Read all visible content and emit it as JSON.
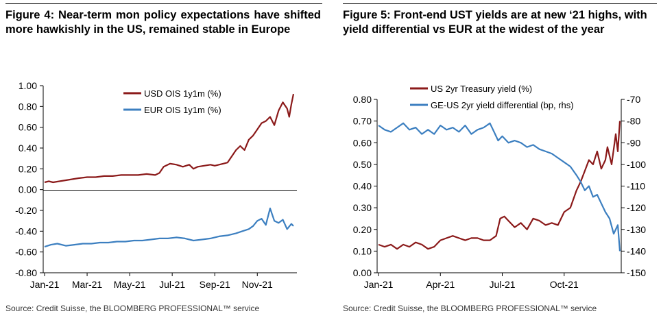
{
  "colors": {
    "series_red": "#8b1a1a",
    "series_blue": "#3c7fc0",
    "axis": "#000000"
  },
  "chart_data": [
    {
      "type": "line",
      "figure_label": "Figure 4:",
      "title": "Figure 4: Near-term mon policy expectations have shifted more hawkishly in the US, remained stable in Europe",
      "source": "Source: Credit Suisse, the BLOOMBERG PROFESSIONAL™ service",
      "xlabel": "",
      "ylabel": "",
      "x_range": [
        0,
        11.7
      ],
      "x_ticks": [
        {
          "label": "Jan-21",
          "x": 0
        },
        {
          "label": "Mar-21",
          "x": 2
        },
        {
          "label": "May-21",
          "x": 4
        },
        {
          "label": "Jul-21",
          "x": 6
        },
        {
          "label": "Sep-21",
          "x": 8
        },
        {
          "label": "Nov-21",
          "x": 10
        }
      ],
      "ylim": [
        -0.8,
        1.0
      ],
      "y_ticks": [
        "1.00",
        "0.80",
        "0.60",
        "0.40",
        "0.20",
        "0.00",
        "-0.20",
        "-0.40",
        "-0.60",
        "-0.80"
      ],
      "y_tick_values": [
        1.0,
        0.8,
        0.6,
        0.4,
        0.2,
        0.0,
        -0.2,
        -0.4,
        -0.6,
        -0.8
      ],
      "legend": "top-center",
      "series": [
        {
          "name": "USD OIS 1y1m (%)",
          "color": "#8b1a1a",
          "x": [
            0,
            0.2,
            0.4,
            0.7,
            1.0,
            1.3,
            1.6,
            2.0,
            2.4,
            2.8,
            3.2,
            3.6,
            4.0,
            4.4,
            4.8,
            5.2,
            5.4,
            5.6,
            5.9,
            6.2,
            6.5,
            6.8,
            7.0,
            7.2,
            7.5,
            7.8,
            8.0,
            8.2,
            8.4,
            8.6,
            8.8,
            9.0,
            9.2,
            9.4,
            9.6,
            9.8,
            10.0,
            10.2,
            10.4,
            10.6,
            10.8,
            11.0,
            11.2,
            11.4,
            11.5,
            11.6,
            11.7
          ],
          "values": [
            0.07,
            0.08,
            0.07,
            0.08,
            0.09,
            0.1,
            0.11,
            0.12,
            0.12,
            0.13,
            0.13,
            0.14,
            0.14,
            0.14,
            0.15,
            0.14,
            0.16,
            0.22,
            0.25,
            0.24,
            0.22,
            0.24,
            0.2,
            0.22,
            0.23,
            0.24,
            0.23,
            0.24,
            0.25,
            0.26,
            0.32,
            0.38,
            0.42,
            0.38,
            0.48,
            0.52,
            0.58,
            0.64,
            0.66,
            0.7,
            0.62,
            0.76,
            0.84,
            0.78,
            0.7,
            0.82,
            0.92
          ]
        },
        {
          "name": "EUR OIS 1y1m (%)",
          "color": "#3c7fc0",
          "x": [
            0,
            0.3,
            0.6,
            1.0,
            1.4,
            1.8,
            2.2,
            2.6,
            3.0,
            3.4,
            3.8,
            4.2,
            4.6,
            5.0,
            5.4,
            5.8,
            6.2,
            6.6,
            7.0,
            7.4,
            7.8,
            8.2,
            8.6,
            9.0,
            9.3,
            9.6,
            9.8,
            10.0,
            10.2,
            10.4,
            10.6,
            10.8,
            11.0,
            11.2,
            11.4,
            11.6,
            11.7
          ],
          "values": [
            -0.55,
            -0.53,
            -0.52,
            -0.54,
            -0.53,
            -0.52,
            -0.52,
            -0.51,
            -0.51,
            -0.5,
            -0.5,
            -0.49,
            -0.49,
            -0.48,
            -0.47,
            -0.47,
            -0.46,
            -0.47,
            -0.49,
            -0.48,
            -0.47,
            -0.45,
            -0.44,
            -0.42,
            -0.4,
            -0.38,
            -0.35,
            -0.3,
            -0.28,
            -0.34,
            -0.18,
            -0.3,
            -0.32,
            -0.29,
            -0.38,
            -0.33,
            -0.35
          ]
        }
      ]
    },
    {
      "type": "line",
      "figure_label": "Figure 5:",
      "title": "Figure 5: Front-end UST yields are at new ‘21 highs, with yield differential vs EUR at the widest of the year",
      "source": "Source: Credit Suisse, the BLOOMBERG PROFESSIONAL™ service",
      "xlabel": "",
      "ylabel": "",
      "x_range": [
        0,
        11.7
      ],
      "x_ticks": [
        {
          "label": "Jan-21",
          "x": 0
        },
        {
          "label": "Apr-21",
          "x": 3
        },
        {
          "label": "Jul-21",
          "x": 6
        },
        {
          "label": "Oct-21",
          "x": 9
        }
      ],
      "ylim": [
        0.0,
        0.8
      ],
      "y_ticks": [
        "0.80",
        "0.70",
        "0.60",
        "0.50",
        "0.40",
        "0.30",
        "0.20",
        "0.10",
        "0.00"
      ],
      "y_tick_values": [
        0.8,
        0.7,
        0.6,
        0.5,
        0.4,
        0.3,
        0.2,
        0.1,
        0.0
      ],
      "y2lim": [
        -150,
        -70
      ],
      "y2_ticks": [
        "-70",
        "-80",
        "-90",
        "-100",
        "-110",
        "-120",
        "-130",
        "-140",
        "-150"
      ],
      "y2_tick_values": [
        -70,
        -80,
        -90,
        -100,
        -110,
        -120,
        -130,
        -140,
        -150
      ],
      "legend": "top-center",
      "series": [
        {
          "name": "US 2yr Treasury yield (%)",
          "axis": "left",
          "color": "#8b1a1a",
          "x": [
            0,
            0.3,
            0.6,
            0.9,
            1.2,
            1.5,
            1.8,
            2.1,
            2.4,
            2.7,
            3.0,
            3.3,
            3.6,
            3.9,
            4.2,
            4.5,
            4.8,
            5.1,
            5.4,
            5.7,
            5.9,
            6.1,
            6.3,
            6.6,
            6.9,
            7.2,
            7.5,
            7.8,
            8.1,
            8.4,
            8.7,
            9.0,
            9.3,
            9.6,
            9.8,
            10.0,
            10.2,
            10.4,
            10.6,
            10.8,
            11.0,
            11.1,
            11.3,
            11.5,
            11.6,
            11.7
          ],
          "values": [
            0.13,
            0.12,
            0.13,
            0.11,
            0.13,
            0.12,
            0.14,
            0.13,
            0.11,
            0.12,
            0.15,
            0.16,
            0.17,
            0.16,
            0.15,
            0.16,
            0.16,
            0.15,
            0.15,
            0.17,
            0.25,
            0.26,
            0.24,
            0.21,
            0.23,
            0.2,
            0.25,
            0.24,
            0.22,
            0.23,
            0.22,
            0.28,
            0.3,
            0.38,
            0.42,
            0.47,
            0.52,
            0.5,
            0.56,
            0.48,
            0.52,
            0.58,
            0.5,
            0.64,
            0.56,
            0.7
          ]
        },
        {
          "name": "GE-US 2yr yield differential (bp, rhs)",
          "axis": "right",
          "color": "#3c7fc0",
          "x": [
            0,
            0.3,
            0.6,
            0.9,
            1.2,
            1.5,
            1.8,
            2.1,
            2.4,
            2.7,
            3.0,
            3.3,
            3.6,
            3.9,
            4.2,
            4.5,
            4.8,
            5.1,
            5.4,
            5.6,
            5.8,
            6.0,
            6.3,
            6.6,
            6.9,
            7.2,
            7.5,
            7.8,
            8.1,
            8.4,
            8.7,
            9.0,
            9.3,
            9.6,
            9.8,
            10.0,
            10.2,
            10.4,
            10.6,
            10.8,
            11.0,
            11.2,
            11.4,
            11.6,
            11.7
          ],
          "values": [
            -82,
            -84,
            -85,
            -83,
            -81,
            -84,
            -83,
            -86,
            -84,
            -86,
            -82,
            -84,
            -83,
            -85,
            -82,
            -86,
            -84,
            -83,
            -81,
            -85,
            -89,
            -87,
            -90,
            -89,
            -90,
            -92,
            -91,
            -93,
            -94,
            -95,
            -97,
            -99,
            -101,
            -105,
            -108,
            -112,
            -110,
            -115,
            -114,
            -118,
            -122,
            -125,
            -132,
            -128,
            -140
          ]
        }
      ]
    }
  ]
}
